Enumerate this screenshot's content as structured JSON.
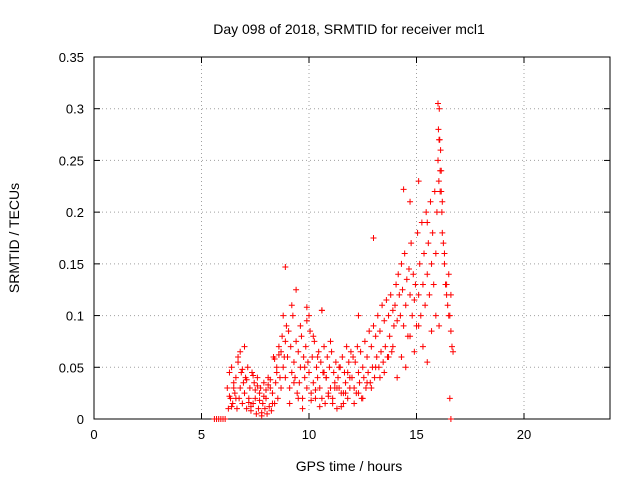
{
  "chart_data": {
    "type": "scatter",
    "title": "Day 098 of 2018, SRMTID for receiver mcl1",
    "xlabel": "GPS time / hours",
    "ylabel": "SRMTID / TECUs",
    "xlim": [
      0,
      24
    ],
    "ylim": [
      0,
      0.35
    ],
    "xticks": [
      0,
      5,
      10,
      15,
      20
    ],
    "xtick_labels": [
      "0",
      "5",
      "10",
      "15",
      "20"
    ],
    "yticks": [
      0,
      0.05,
      0.1,
      0.15,
      0.2,
      0.25,
      0.3,
      0.35
    ],
    "ytick_labels": [
      "0",
      "0.05",
      "0.1",
      "0.15",
      "0.2",
      "0.25",
      "0.3",
      "0.35"
    ],
    "grid": true,
    "marker": "+",
    "color": "#ff0000",
    "series": [
      {
        "name": "SRMTID",
        "x": [
          5.6,
          5.7,
          5.8,
          5.9,
          6.0,
          6.1,
          6.2,
          6.25,
          6.3,
          6.35,
          6.4,
          6.45,
          6.5,
          6.55,
          6.6,
          6.65,
          6.7,
          6.75,
          6.8,
          6.85,
          6.9,
          6.95,
          7.0,
          7.05,
          7.1,
          7.15,
          7.2,
          7.25,
          7.3,
          7.35,
          7.4,
          7.45,
          7.5,
          7.55,
          7.6,
          7.65,
          7.7,
          7.75,
          7.8,
          7.85,
          7.9,
          7.95,
          8.0,
          8.05,
          8.1,
          8.15,
          8.2,
          8.25,
          8.3,
          8.35,
          8.4,
          8.45,
          8.5,
          8.55,
          8.6,
          8.65,
          8.7,
          8.75,
          8.8,
          8.85,
          8.9,
          8.95,
          6.3,
          6.5,
          6.7,
          6.9,
          7.1,
          7.3,
          7.5,
          7.7,
          7.9,
          8.1,
          8.3,
          8.5,
          8.7,
          8.9,
          6.4,
          6.6,
          6.8,
          7.0,
          7.2,
          7.4,
          7.6,
          7.8,
          8.0,
          8.2,
          8.4,
          8.6,
          8.8,
          9.0,
          9.05,
          9.1,
          9.15,
          9.2,
          9.25,
          9.3,
          9.35,
          9.4,
          9.45,
          9.5,
          9.55,
          9.6,
          9.65,
          9.7,
          9.75,
          9.8,
          9.85,
          9.9,
          9.95,
          10.0,
          10.05,
          10.1,
          10.15,
          10.2,
          10.25,
          10.3,
          10.35,
          10.4,
          10.45,
          10.5,
          10.55,
          10.6,
          10.65,
          10.7,
          10.75,
          10.8,
          10.85,
          10.9,
          10.95,
          11.0,
          11.05,
          11.1,
          11.15,
          11.2,
          11.25,
          11.3,
          11.35,
          11.4,
          11.45,
          11.5,
          11.55,
          11.6,
          11.65,
          11.7,
          11.75,
          11.8,
          11.85,
          11.9,
          11.95,
          9.1,
          9.3,
          9.5,
          9.7,
          9.9,
          10.1,
          10.3,
          10.5,
          10.7,
          10.9,
          11.1,
          11.3,
          11.5,
          11.7,
          11.9,
          9.2,
          9.4,
          9.6,
          9.8,
          10.0,
          10.2,
          10.4,
          10.6,
          10.8,
          11.0,
          11.2,
          11.4,
          11.6,
          11.8,
          12.0,
          12.05,
          12.1,
          12.15,
          12.2,
          12.25,
          12.3,
          12.35,
          12.4,
          12.45,
          12.5,
          12.55,
          12.6,
          12.65,
          12.7,
          12.75,
          12.8,
          12.85,
          12.9,
          12.95,
          13.0,
          13.05,
          13.1,
          13.15,
          13.2,
          13.25,
          13.3,
          13.35,
          13.4,
          13.45,
          13.5,
          13.55,
          13.6,
          13.65,
          13.7,
          13.75,
          13.8,
          13.85,
          13.9,
          13.95,
          12.1,
          12.3,
          12.5,
          12.7,
          12.9,
          13.1,
          13.3,
          13.5,
          13.7,
          13.9,
          14.0,
          14.05,
          14.1,
          14.15,
          14.2,
          14.25,
          14.3,
          14.35,
          14.4,
          14.45,
          14.5,
          14.55,
          14.6,
          14.65,
          14.7,
          14.75,
          14.8,
          14.85,
          14.9,
          14.95,
          15.0,
          15.05,
          15.1,
          15.15,
          15.2,
          15.25,
          15.3,
          15.35,
          15.4,
          15.45,
          15.5,
          15.55,
          15.6,
          15.65,
          15.7,
          15.75,
          15.8,
          15.85,
          15.9,
          15.95,
          14.1,
          14.3,
          14.5,
          14.7,
          14.9,
          15.1,
          15.3,
          15.5,
          15.7,
          15.9,
          16.0,
          16.02,
          16.04,
          16.06,
          16.08,
          16.1,
          16.12,
          16.15,
          16.18,
          16.2,
          16.25,
          16.3,
          16.35,
          16.4,
          16.45,
          16.5,
          16.55,
          16.6,
          16.65,
          16.0,
          16.05,
          16.1,
          16.15,
          16.2,
          16.3,
          16.4,
          16.5,
          16.6,
          16.7,
          8.9,
          9.9,
          10.6,
          14.4,
          14.7,
          15.1,
          15.5,
          16.05,
          16.6,
          16.55,
          13.0,
          12.3
        ],
        "y": [
          0.0,
          0.0,
          0.0,
          0.0,
          0.0,
          0.0,
          0.03,
          0.01,
          0.045,
          0.02,
          0.05,
          0.015,
          0.035,
          0.025,
          0.04,
          0.01,
          0.06,
          0.02,
          0.03,
          0.045,
          0.015,
          0.035,
          0.025,
          0.04,
          0.01,
          0.05,
          0.02,
          0.03,
          0.008,
          0.045,
          0.015,
          0.035,
          0.02,
          0.005,
          0.04,
          0.01,
          0.025,
          0.03,
          0.003,
          0.015,
          0.035,
          0.01,
          0.02,
          0.005,
          0.04,
          0.012,
          0.03,
          0.008,
          0.025,
          0.06,
          0.015,
          0.035,
          0.05,
          0.02,
          0.07,
          0.04,
          0.03,
          0.08,
          0.05,
          0.06,
          0.04,
          0.09,
          0.022,
          0.03,
          0.055,
          0.048,
          0.038,
          0.012,
          0.028,
          0.018,
          0.022,
          0.033,
          0.015,
          0.045,
          0.065,
          0.075,
          0.012,
          0.02,
          0.065,
          0.07,
          0.016,
          0.042,
          0.032,
          0.006,
          0.028,
          0.038,
          0.058,
          0.062,
          0.1,
          0.06,
          0.085,
          0.03,
          0.07,
          0.045,
          0.1,
          0.055,
          0.04,
          0.075,
          0.025,
          0.065,
          0.035,
          0.05,
          0.08,
          0.02,
          0.06,
          0.04,
          0.07,
          0.03,
          0.055,
          0.045,
          0.085,
          0.025,
          0.06,
          0.035,
          0.075,
          0.02,
          0.05,
          0.04,
          0.065,
          0.03,
          0.055,
          0.02,
          0.045,
          0.07,
          0.015,
          0.04,
          0.06,
          0.025,
          0.05,
          0.03,
          0.065,
          0.02,
          0.045,
          0.035,
          0.055,
          0.01,
          0.04,
          0.03,
          0.05,
          0.025,
          0.06,
          0.015,
          0.045,
          0.035,
          0.07,
          0.02,
          0.055,
          0.03,
          0.065,
          0.015,
          0.035,
          0.02,
          0.01,
          0.095,
          0.018,
          0.028,
          0.012,
          0.045,
          0.022,
          0.015,
          0.03,
          0.012,
          0.025,
          0.04,
          0.11,
          0.125,
          0.09,
          0.05,
          0.1,
          0.08,
          0.06,
          0.105,
          0.04,
          0.075,
          0.03,
          0.05,
          0.025,
          0.045,
          0.04,
          0.06,
          0.03,
          0.055,
          0.025,
          0.07,
          0.045,
          0.035,
          0.065,
          0.02,
          0.05,
          0.04,
          0.075,
          0.03,
          0.06,
          0.045,
          0.085,
          0.035,
          0.07,
          0.05,
          0.09,
          0.04,
          0.08,
          0.06,
          0.1,
          0.05,
          0.085,
          0.065,
          0.11,
          0.055,
          0.095,
          0.07,
          0.115,
          0.06,
          0.1,
          0.08,
          0.12,
          0.065,
          0.105,
          0.09,
          0.015,
          0.025,
          0.02,
          0.035,
          0.03,
          0.05,
          0.04,
          0.045,
          0.06,
          0.07,
          0.11,
          0.13,
          0.095,
          0.14,
          0.12,
          0.1,
          0.15,
          0.125,
          0.09,
          0.16,
          0.11,
          0.135,
          0.08,
          0.145,
          0.12,
          0.17,
          0.1,
          0.14,
          0.115,
          0.13,
          0.09,
          0.18,
          0.12,
          0.15,
          0.1,
          0.19,
          0.13,
          0.16,
          0.11,
          0.2,
          0.14,
          0.17,
          0.12,
          0.21,
          0.15,
          0.18,
          0.13,
          0.22,
          0.16,
          0.2,
          0.04,
          0.06,
          0.05,
          0.08,
          0.065,
          0.09,
          0.07,
          0.055,
          0.085,
          0.1,
          0.25,
          0.28,
          0.23,
          0.3,
          0.27,
          0.22,
          0.26,
          0.24,
          0.2,
          0.21,
          0.17,
          0.15,
          0.13,
          0.12,
          0.11,
          0.14,
          0.1,
          0.12,
          0.07,
          0.305,
          0.27,
          0.24,
          0.22,
          0.18,
          0.16,
          0.13,
          0.1,
          0.085,
          0.065,
          0.147,
          0.108,
          0.105,
          0.222,
          0.21,
          0.23,
          0.19,
          0.09,
          0.0,
          0.02,
          0.175,
          0.1
        ]
      }
    ]
  }
}
